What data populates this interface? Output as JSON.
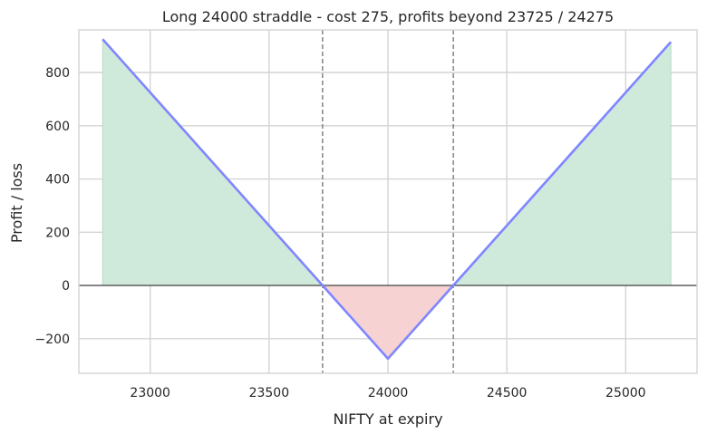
{
  "chart_data": {
    "type": "line",
    "title": "Long 24000 straddle - cost 275, profits beyond 23725 / 24275",
    "xlabel": "NIFTY at expiry",
    "ylabel": "Profit / loss",
    "xlim": [
      22700,
      25300
    ],
    "ylim": [
      -330,
      960
    ],
    "x_ticks": [
      23000,
      23500,
      24000,
      24500,
      25000
    ],
    "y_ticks": [
      -200,
      0,
      200,
      400,
      600,
      800
    ],
    "x_tick_labels": [
      "23000",
      "23500",
      "24000",
      "24500",
      "25000"
    ],
    "y_tick_labels": [
      "−200",
      "0",
      "200",
      "400",
      "600",
      "800"
    ],
    "grid": true,
    "series": [
      {
        "x": [
          22800,
          23725,
          24000,
          24275,
          25190
        ],
        "y": [
          925,
          0,
          -275,
          0,
          915
        ]
      }
    ],
    "breakevens": [
      23725,
      24275
    ],
    "zero_line": 0,
    "fill_between_zero": true,
    "colors": {
      "line": "#7f86ff",
      "profit_fill": "#cfeadb",
      "loss_fill": "#f6d2d3",
      "zero_line": "#555555",
      "breakeven_line": "#7a7a7a",
      "grid": "#d4d4d4",
      "axes_edge": "#d4d4d4"
    }
  }
}
